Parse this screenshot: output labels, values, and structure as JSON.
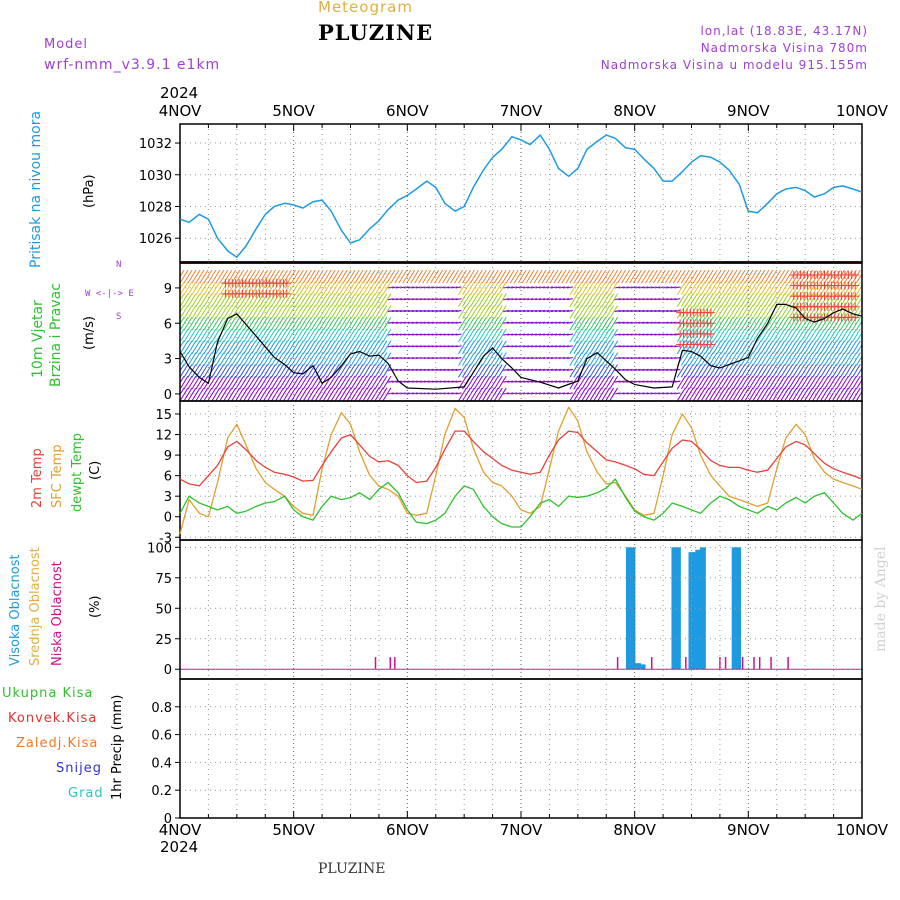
{
  "header": {
    "subtitle": "Meteogram",
    "station": "PLUZINE",
    "model_label": "Model",
    "model_name": "wrf-nmm_v3.9.1 e1km",
    "lonlat": "lon,lat (18.83E, 43.17N)",
    "elevation": "Nadmorska Visina 780m",
    "model_elevation": "Nadmorska Visina u modelu 915.155m",
    "footer_station": "PLUZINE",
    "watermark": "made by Angel"
  },
  "colors": {
    "pressure": "#1e9be0",
    "wind_speed": "#000000",
    "temp_2m": "#e8413c",
    "temp_sfc": "#e0a030",
    "dewpoint": "#30c030",
    "cloud_high": "#1e9be0",
    "cloud_mid": "#e0b040",
    "cloud_low": "#d0108a",
    "precip_total": "#30c030",
    "precip_conv": "#e83030",
    "precip_strat": "#f07820",
    "precip_snow": "#3030e0",
    "precip_grad": "#30c0c0",
    "grid": "#999999"
  },
  "chart_data": [
    {
      "type": "line",
      "panel": "pressure",
      "title": "Pritisak na nivou mora",
      "ylabel": "(hPa)",
      "ylim": [
        1024.5,
        1033.2
      ],
      "yticks": [
        1026,
        1028,
        1030,
        1032
      ],
      "x_unit": "days since 4 Nov 2024 00 UTC",
      "series": [
        {
          "name": "Pritisak na nivou mora",
          "x": [
            0,
            0.08,
            0.17,
            0.25,
            0.33,
            0.42,
            0.5,
            0.58,
            0.67,
            0.75,
            0.83,
            0.92,
            1.0,
            1.08,
            1.17,
            1.25,
            1.33,
            1.42,
            1.5,
            1.58,
            1.67,
            1.75,
            1.83,
            1.92,
            2.0,
            2.08,
            2.17,
            2.25,
            2.33,
            2.42,
            2.5,
            2.58,
            2.67,
            2.75,
            2.83,
            2.92,
            3.0,
            3.08,
            3.17,
            3.25,
            3.33,
            3.42,
            3.5,
            3.58,
            3.67,
            3.75,
            3.83,
            3.92,
            4.0,
            4.08,
            4.17,
            4.25,
            4.33,
            4.42,
            4.5,
            4.58,
            4.67,
            4.75,
            4.83,
            4.92,
            5.0,
            5.08,
            5.17,
            5.25,
            5.33,
            5.42,
            5.5,
            5.58,
            5.67,
            5.75,
            5.83,
            5.92,
            6.0
          ],
          "values": [
            1027.2,
            1027.0,
            1027.5,
            1027.2,
            1026.0,
            1025.2,
            1024.8,
            1025.5,
            1026.6,
            1027.5,
            1028.0,
            1028.2,
            1028.1,
            1027.9,
            1028.3,
            1028.4,
            1027.7,
            1026.5,
            1025.7,
            1025.9,
            1026.6,
            1027.1,
            1027.8,
            1028.4,
            1028.7,
            1029.1,
            1029.6,
            1029.2,
            1028.2,
            1027.7,
            1028.0,
            1029.2,
            1030.3,
            1031.1,
            1031.6,
            1032.4,
            1032.2,
            1031.9,
            1032.5,
            1031.6,
            1030.4,
            1029.9,
            1030.4,
            1031.6,
            1032.1,
            1032.5,
            1032.3,
            1031.7,
            1031.6,
            1031.0,
            1030.4,
            1029.6,
            1029.6,
            1030.2,
            1030.8,
            1031.2,
            1031.1,
            1030.8,
            1030.3,
            1029.4,
            1027.7,
            1027.6,
            1028.2,
            1028.8,
            1029.1,
            1029.2,
            1029.0,
            1028.6,
            1028.8,
            1029.2,
            1029.3,
            1029.1,
            1028.9
          ]
        }
      ]
    },
    {
      "type": "line",
      "panel": "wind",
      "title": "10m Vjetar Brzina i Pravac",
      "ylabel": "(m/s)",
      "compass": "N",
      "compass_labels": "W <-|-> E",
      "compass_s": "S",
      "ylim": [
        -0.6,
        11.2
      ],
      "yticks": [
        0,
        3,
        6,
        9
      ],
      "series": [
        {
          "name": "10m Vjetar Brzina",
          "x": [
            0,
            0.08,
            0.17,
            0.25,
            0.33,
            0.42,
            0.5,
            0.58,
            0.67,
            0.75,
            0.83,
            0.92,
            1.0,
            1.08,
            1.17,
            1.25,
            1.33,
            1.42,
            1.5,
            1.58,
            1.67,
            1.75,
            1.83,
            1.92,
            2.0,
            2.25,
            2.5,
            2.67,
            2.75,
            2.83,
            2.92,
            3.0,
            3.17,
            3.33,
            3.5,
            3.58,
            3.67,
            3.75,
            3.83,
            3.92,
            4.0,
            4.17,
            4.33,
            4.42,
            4.5,
            4.58,
            4.67,
            4.75,
            4.83,
            4.92,
            5.0,
            5.08,
            5.17,
            5.25,
            5.33,
            5.42,
            5.5,
            5.58,
            5.67,
            5.75,
            5.83,
            5.92,
            6.0
          ],
          "values": [
            3.6,
            2.3,
            1.4,
            0.9,
            4.4,
            6.4,
            6.8,
            5.9,
            4.9,
            4.0,
            3.1,
            2.5,
            1.8,
            1.7,
            2.4,
            0.9,
            1.4,
            2.4,
            3.4,
            3.6,
            3.2,
            3.3,
            2.6,
            1.1,
            0.5,
            0.4,
            0.6,
            3.2,
            3.9,
            3.0,
            2.2,
            1.4,
            1.0,
            0.5,
            1.1,
            3.0,
            3.5,
            2.8,
            2.1,
            1.2,
            0.8,
            0.5,
            0.6,
            3.7,
            3.6,
            3.2,
            2.4,
            2.2,
            2.5,
            2.8,
            3.1,
            4.7,
            6.0,
            7.6,
            7.6,
            7.3,
            6.4,
            6.1,
            6.4,
            6.9,
            7.2,
            6.8,
            6.6
          ]
        }
      ]
    },
    {
      "type": "line",
      "panel": "temperature",
      "ylabel": "(C)",
      "ylim": [
        -3.4,
        16.9
      ],
      "yticks": [
        -3,
        0,
        3,
        6,
        9,
        12,
        15
      ],
      "series": [
        {
          "name": "2m Temp",
          "x": [
            0,
            0.08,
            0.17,
            0.25,
            0.33,
            0.42,
            0.5,
            0.58,
            0.67,
            0.75,
            0.83,
            0.92,
            1.0,
            1.08,
            1.17,
            1.25,
            1.33,
            1.42,
            1.5,
            1.58,
            1.67,
            1.75,
            1.83,
            1.92,
            2.0,
            2.08,
            2.17,
            2.25,
            2.33,
            2.42,
            2.5,
            2.58,
            2.67,
            2.75,
            2.83,
            2.92,
            3.0,
            3.08,
            3.17,
            3.25,
            3.33,
            3.42,
            3.5,
            3.58,
            3.67,
            3.75,
            3.83,
            3.92,
            4.0,
            4.08,
            4.17,
            4.25,
            4.33,
            4.42,
            4.5,
            4.58,
            4.67,
            4.75,
            4.83,
            4.92,
            5.0,
            5.08,
            5.17,
            5.25,
            5.33,
            5.42,
            5.5,
            5.58,
            5.67,
            5.75,
            5.83,
            5.92,
            6.0
          ],
          "values": [
            5.5,
            4.8,
            4.5,
            6.0,
            7.5,
            10.2,
            11.0,
            9.8,
            8.2,
            7.2,
            6.5,
            6.2,
            5.8,
            5.2,
            5.3,
            7.5,
            9.5,
            11.5,
            12.0,
            10.5,
            8.8,
            8.0,
            8.2,
            7.5,
            6.0,
            5.0,
            5.2,
            7.2,
            9.8,
            12.5,
            12.5,
            11.0,
            9.5,
            8.5,
            7.5,
            6.8,
            6.5,
            6.2,
            6.5,
            9.0,
            11.2,
            12.5,
            12.3,
            10.8,
            9.5,
            8.3,
            8.0,
            7.5,
            7.0,
            6.2,
            6.0,
            8.0,
            10.0,
            11.2,
            11.0,
            9.8,
            8.2,
            7.5,
            7.2,
            7.2,
            6.8,
            6.5,
            6.8,
            8.5,
            10.2,
            11.0,
            10.5,
            9.2,
            7.8,
            7.0,
            6.5,
            6.0,
            5.5
          ]
        },
        {
          "name": "SFC Temp",
          "x": [
            0,
            0.08,
            0.17,
            0.25,
            0.33,
            0.42,
            0.5,
            0.58,
            0.67,
            0.75,
            0.83,
            0.92,
            1.0,
            1.08,
            1.17,
            1.25,
            1.33,
            1.42,
            1.5,
            1.58,
            1.67,
            1.75,
            1.83,
            1.92,
            2.0,
            2.08,
            2.17,
            2.25,
            2.33,
            2.42,
            2.5,
            2.58,
            2.67,
            2.75,
            2.83,
            2.92,
            3.0,
            3.08,
            3.17,
            3.25,
            3.33,
            3.42,
            3.5,
            3.58,
            3.67,
            3.75,
            3.83,
            3.92,
            4.0,
            4.08,
            4.17,
            4.25,
            4.33,
            4.42,
            4.5,
            4.58,
            4.67,
            4.75,
            4.83,
            4.92,
            5.0,
            5.08,
            5.17,
            5.25,
            5.33,
            5.42,
            5.5,
            5.58,
            5.67,
            5.75,
            5.83,
            5.92,
            6.0
          ],
          "values": [
            -2.5,
            2.5,
            0.5,
            0.0,
            5.0,
            11.5,
            13.5,
            10.5,
            7.0,
            5.0,
            4.0,
            3.0,
            1.5,
            0.5,
            0.2,
            7.0,
            12.0,
            15.2,
            13.5,
            9.5,
            6.0,
            4.5,
            4.0,
            3.0,
            0.5,
            0.2,
            0.5,
            6.0,
            12.0,
            15.8,
            14.5,
            10.0,
            6.5,
            5.0,
            4.5,
            3.0,
            1.0,
            0.5,
            1.5,
            7.0,
            12.5,
            16.0,
            14.0,
            9.5,
            6.5,
            4.8,
            5.0,
            3.0,
            1.0,
            0.2,
            0.5,
            6.0,
            12.0,
            15.0,
            13.0,
            9.0,
            6.0,
            4.5,
            3.0,
            2.5,
            2.0,
            1.5,
            2.0,
            7.0,
            11.5,
            13.5,
            12.0,
            8.5,
            6.5,
            5.5,
            5.0,
            4.5,
            4.0
          ]
        },
        {
          "name": "dewpt Temp",
          "x": [
            0,
            0.08,
            0.17,
            0.25,
            0.33,
            0.42,
            0.5,
            0.58,
            0.67,
            0.75,
            0.83,
            0.92,
            1.0,
            1.08,
            1.17,
            1.25,
            1.33,
            1.42,
            1.5,
            1.58,
            1.67,
            1.75,
            1.83,
            1.92,
            2.0,
            2.08,
            2.17,
            2.25,
            2.33,
            2.42,
            2.5,
            2.58,
            2.67,
            2.75,
            2.83,
            2.92,
            3.0,
            3.08,
            3.17,
            3.25,
            3.33,
            3.42,
            3.5,
            3.58,
            3.67,
            3.75,
            3.83,
            3.92,
            4.0,
            4.08,
            4.17,
            4.25,
            4.33,
            4.42,
            4.5,
            4.58,
            4.67,
            4.75,
            4.83,
            4.92,
            5.0,
            5.08,
            5.17,
            5.25,
            5.33,
            5.42,
            5.5,
            5.58,
            5.67,
            5.75,
            5.83,
            5.92,
            6.0
          ],
          "values": [
            0.5,
            3.0,
            2.0,
            1.5,
            1.0,
            1.5,
            0.5,
            0.8,
            1.5,
            2.0,
            2.2,
            3.0,
            1.0,
            0.0,
            -0.5,
            1.5,
            3.0,
            2.5,
            2.8,
            3.5,
            2.5,
            4.0,
            5.0,
            3.5,
            1.0,
            -0.8,
            -1.0,
            -0.5,
            0.5,
            3.0,
            4.5,
            4.0,
            1.5,
            0.0,
            -1.0,
            -1.5,
            -1.5,
            0.0,
            2.0,
            2.5,
            1.5,
            3.0,
            2.8,
            3.0,
            3.5,
            4.2,
            5.5,
            2.8,
            0.8,
            0.0,
            -0.5,
            0.5,
            2.0,
            1.5,
            1.0,
            0.5,
            2.0,
            3.0,
            2.5,
            1.5,
            1.0,
            0.5,
            1.5,
            1.0,
            2.0,
            2.8,
            2.0,
            3.0,
            3.5,
            2.0,
            0.5,
            -0.5,
            0.5
          ]
        }
      ]
    },
    {
      "type": "bar",
      "panel": "clouds",
      "ylabel": "(%)",
      "ylim": [
        -8,
        106
      ],
      "yticks": [
        0,
        25,
        50,
        75,
        100
      ],
      "series": [
        {
          "name": "Visoka Oblacnost",
          "x": [
            3.95,
            3.98,
            4.03,
            4.07,
            4.35,
            4.38,
            4.5,
            4.53,
            4.56,
            4.6,
            4.88,
            4.91
          ],
          "values": [
            100,
            100,
            5,
            4,
            100,
            100,
            96,
            96,
            98,
            100,
            100,
            100
          ]
        },
        {
          "name": "Srednja Oblacnost",
          "x": [],
          "values": []
        },
        {
          "name": "Niska Oblacnost",
          "x": [
            1.72,
            1.85,
            1.89,
            3.85,
            4.15,
            4.45,
            4.75,
            4.8,
            4.95,
            5.05,
            5.1,
            5.2,
            5.35
          ],
          "values": [
            10,
            10,
            10,
            10,
            10,
            10,
            10,
            10,
            10,
            10,
            10,
            10,
            10
          ]
        }
      ]
    },
    {
      "type": "bar",
      "panel": "precipitation",
      "ylabel": "1hr Precip (mm)",
      "ylim": [
        0,
        1.0
      ],
      "yticks": [
        0,
        0.2,
        0.4,
        0.6,
        0.8
      ],
      "series": [
        {
          "name": "Ukupna Kisa",
          "x": [],
          "values": []
        },
        {
          "name": "Konvek.Kisa",
          "x": [],
          "values": []
        },
        {
          "name": "Zaledj.Kisa",
          "x": [],
          "values": []
        },
        {
          "name": "Snijeg",
          "x": [],
          "values": []
        },
        {
          "name": "Grad",
          "x": [],
          "values": []
        }
      ]
    }
  ],
  "x_axis": {
    "year": "2024",
    "ticks": [
      "4NOV",
      "5NOV",
      "6NOV",
      "7NOV",
      "8NOV",
      "9NOV",
      "10NOV"
    ]
  }
}
